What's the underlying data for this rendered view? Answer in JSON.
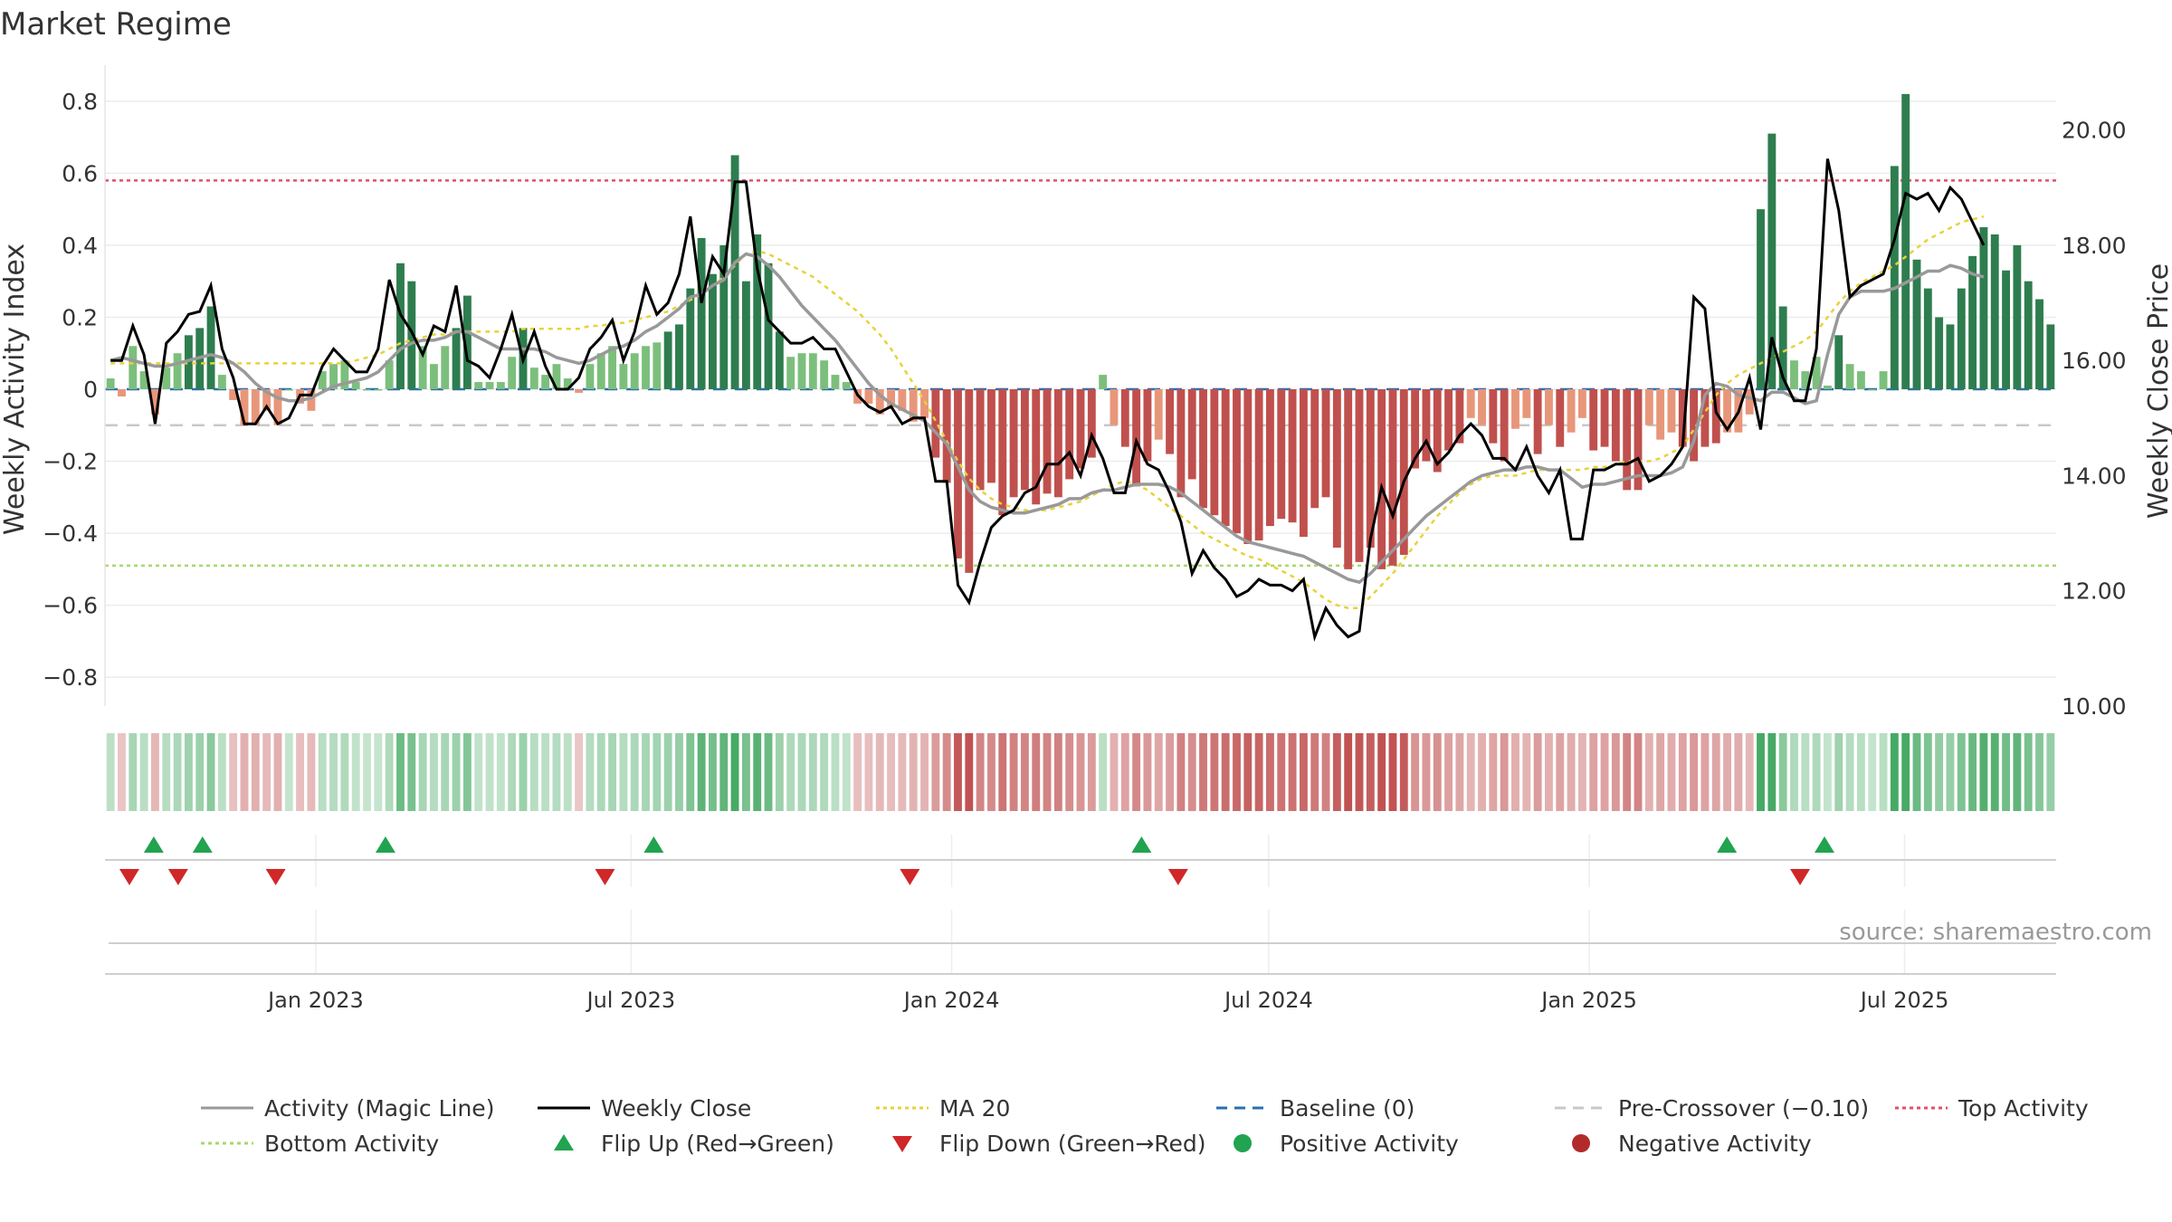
{
  "title": "Market Regime",
  "source": "source: sharemaestro.com",
  "colors": {
    "pos_dark": "#2e7d4f",
    "pos_light": "#7cbf7c",
    "neg_dark": "#c0504d",
    "neg_light": "#e8967a",
    "close": "#000000",
    "magic": "#999999",
    "ma20": "#e8d23a",
    "baseline": "#2a6fb0",
    "precross": "#c8c8c8",
    "top": "#e0506a",
    "bottom": "#a8d86a",
    "flip_up": "#21a350",
    "flip_down": "#d02727"
  },
  "chart_data": {
    "type": "bar+line",
    "ylabel_left": "Weekly Activity Index",
    "ylabel_right": "Weekly Close Price",
    "ylim_left": [
      -0.88,
      0.88
    ],
    "ylim_right": [
      10.0,
      21.0
    ],
    "yticks_left": [
      "0.8",
      "0.6",
      "0.4",
      "0.2",
      "0",
      "−0.2",
      "−0.4",
      "−0.6",
      "−0.8"
    ],
    "yticks_left_values": [
      0.8,
      0.6,
      0.4,
      0.2,
      0,
      -0.2,
      -0.4,
      -0.6,
      -0.8
    ],
    "yticks_right": [
      "20.00",
      "18.00",
      "16.00",
      "14.00",
      "12.00",
      "10.00"
    ],
    "yticks_right_values": [
      20,
      18,
      16,
      14,
      12,
      10
    ],
    "x_start": "2022-09-02",
    "x_end": "2025-09-26",
    "xticks": [
      {
        "label": "Jan 2023",
        "date": "2023-01-01"
      },
      {
        "label": "Jul 2023",
        "date": "2023-07-01"
      },
      {
        "label": "Jan 2024",
        "date": "2024-01-01"
      },
      {
        "label": "Jul 2024",
        "date": "2024-07-01"
      },
      {
        "label": "Jan 2025",
        "date": "2025-01-01"
      },
      {
        "label": "Jul 2025",
        "date": "2025-07-01"
      }
    ],
    "top_activity": 0.58,
    "bottom_activity": -0.49,
    "pre_crossover": -0.1,
    "baseline": 0,
    "activity": [
      [
        0.03,
        -0.02,
        0.12,
        0.05,
        -0.07,
        0.06,
        0.1,
        0.15,
        0.17,
        0.23,
        0.04,
        -0.03,
        -0.1,
        -0.1,
        -0.06,
        -0.1,
        0.0,
        -0.04,
        -0.06,
        0.05,
        0.07,
        0.08,
        0.02,
        0.0,
        0.0,
        0.08,
        0.35,
        0.3,
        0.12,
        0.07,
        0.12,
        0.17,
        0.26,
        0.02,
        0.02,
        0.02,
        0.09,
        0.17,
        0.06,
        0.04,
        0.07,
        0.03,
        -0.01,
        0.07,
        0.1,
        0.12,
        0.07,
        0.1,
        0.12,
        0.13,
        0.16,
        0.18,
        0.28,
        0.42,
        0.32,
        0.4,
        0.65,
        0.3,
        0.43,
        0.35,
        0.16,
        0.09,
        0.1,
        0.1,
        0.08,
        0.04,
        0.02,
        -0.04,
        -0.04,
        -0.07,
        -0.05,
        -0.06,
        -0.09,
        -0.08,
        -0.19,
        -0.26,
        -0.47,
        -0.51,
        -0.28,
        -0.26,
        -0.35,
        -0.3,
        -0.28,
        -0.32,
        -0.29,
        -0.3,
        -0.25,
        -0.22,
        -0.19,
        0.04,
        -0.1,
        -0.16,
        -0.27,
        -0.2,
        -0.14,
        -0.18,
        -0.3,
        -0.25,
        -0.33,
        -0.35,
        -0.38,
        -0.4,
        -0.43,
        -0.42,
        -0.38,
        -0.36,
        -0.37,
        -0.41,
        -0.33,
        -0.3,
        -0.44,
        -0.5,
        -0.48,
        -0.44,
        -0.5,
        -0.49,
        -0.46,
        -0.22,
        -0.2,
        -0.23,
        -0.17,
        -0.15,
        -0.08,
        -0.1,
        -0.15,
        -0.2,
        -0.11,
        -0.08,
        -0.18,
        -0.1,
        -0.16,
        -0.12,
        -0.08,
        -0.17,
        -0.16,
        -0.2,
        -0.28,
        -0.28,
        -0.1,
        -0.14,
        -0.12,
        -0.16,
        -0.2,
        -0.16,
        -0.15,
        -0.12,
        -0.12,
        -0.07,
        0.5,
        0.71,
        0.23,
        0.08,
        0.05,
        0.09,
        0.01,
        0.15,
        0.07,
        0.05,
        0.0,
        0.05,
        0.62,
        0.82,
        0.36,
        0.28,
        0.2,
        0.18,
        0.28,
        0.37,
        0.45,
        0.43,
        0.33,
        0.4,
        0.3,
        0.25,
        0.18
      ]
    ],
    "weekly_close": [
      16.0,
      16.0,
      16.6,
      16.1,
      14.9,
      16.3,
      16.5,
      16.8,
      16.85,
      17.3,
      16.2,
      15.7,
      14.9,
      14.9,
      15.2,
      14.9,
      15.0,
      15.4,
      15.4,
      15.9,
      16.2,
      16.0,
      15.8,
      15.8,
      16.2,
      17.4,
      16.8,
      16.5,
      16.1,
      16.6,
      16.5,
      17.3,
      16.0,
      15.9,
      15.7,
      16.2,
      16.8,
      16.0,
      16.5,
      15.9,
      15.5,
      15.5,
      15.7,
      16.2,
      16.4,
      16.7,
      16.0,
      16.5,
      17.3,
      16.8,
      17.0,
      17.5,
      18.5,
      17.0,
      17.8,
      17.5,
      19.1,
      19.1,
      17.6,
      16.7,
      16.5,
      16.3,
      16.3,
      16.4,
      16.2,
      16.2,
      15.8,
      15.4,
      15.2,
      15.1,
      15.2,
      14.9,
      15.0,
      15.0,
      13.9,
      13.9,
      12.1,
      11.8,
      12.5,
      13.1,
      13.3,
      13.4,
      13.7,
      13.8,
      14.2,
      14.2,
      14.4,
      14.0,
      14.7,
      14.3,
      13.7,
      13.7,
      14.6,
      14.2,
      14.1,
      13.7,
      13.2,
      12.3,
      12.7,
      12.4,
      12.2,
      11.9,
      12.0,
      12.2,
      12.1,
      12.1,
      12.0,
      12.2,
      11.2,
      11.7,
      11.4,
      11.2,
      11.3,
      12.9,
      13.8,
      13.3,
      13.9,
      14.3,
      14.6,
      14.2,
      14.4,
      14.7,
      14.9,
      14.7,
      14.3,
      14.3,
      14.1,
      14.5,
      14.0,
      13.7,
      14.1,
      12.9,
      12.9,
      14.1,
      14.1,
      14.2,
      14.2,
      14.3,
      13.9,
      14.0,
      14.2,
      14.5,
      17.1,
      16.9,
      15.1,
      14.8,
      15.1,
      15.7,
      14.8,
      16.4,
      15.7,
      15.3,
      15.3,
      16.2,
      19.5,
      18.6,
      17.1,
      17.3,
      17.4,
      17.5,
      18.1,
      18.9,
      18.8,
      18.9,
      18.6,
      19.0,
      18.8,
      18.4,
      18.0
    ],
    "magic_line": [
      16.0,
      16.05,
      16.0,
      15.95,
      15.9,
      15.9,
      15.95,
      16.0,
      16.05,
      16.1,
      16.05,
      15.95,
      15.8,
      15.6,
      15.45,
      15.35,
      15.3,
      15.3,
      15.35,
      15.45,
      15.55,
      15.6,
      15.65,
      15.7,
      15.8,
      16.0,
      16.2,
      16.3,
      16.35,
      16.35,
      16.4,
      16.5,
      16.5,
      16.4,
      16.3,
      16.2,
      16.2,
      16.2,
      16.2,
      16.15,
      16.05,
      16.0,
      15.95,
      16.0,
      16.1,
      16.2,
      16.25,
      16.35,
      16.5,
      16.6,
      16.75,
      16.9,
      17.1,
      17.15,
      17.3,
      17.4,
      17.7,
      17.85,
      17.8,
      17.65,
      17.45,
      17.2,
      16.95,
      16.75,
      16.55,
      16.35,
      16.1,
      15.85,
      15.6,
      15.4,
      15.25,
      15.15,
      15.05,
      14.95,
      14.75,
      14.55,
      14.15,
      13.75,
      13.55,
      13.45,
      13.4,
      13.35,
      13.35,
      13.4,
      13.45,
      13.5,
      13.6,
      13.6,
      13.7,
      13.75,
      13.75,
      13.8,
      13.85,
      13.85,
      13.85,
      13.8,
      13.7,
      13.55,
      13.4,
      13.25,
      13.1,
      12.95,
      12.85,
      12.8,
      12.75,
      12.7,
      12.65,
      12.6,
      12.5,
      12.4,
      12.3,
      12.2,
      12.15,
      12.3,
      12.5,
      12.7,
      12.9,
      13.1,
      13.3,
      13.45,
      13.6,
      13.75,
      13.9,
      14.0,
      14.05,
      14.1,
      14.1,
      14.15,
      14.15,
      14.1,
      14.1,
      13.95,
      13.8,
      13.85,
      13.85,
      13.9,
      13.95,
      14.0,
      14.0,
      14.0,
      14.05,
      14.15,
      14.6,
      15.4,
      15.6,
      15.55,
      15.4,
      15.35,
      15.3,
      15.45,
      15.45,
      15.35,
      15.25,
      15.3,
      16.1,
      16.8,
      17.1,
      17.2,
      17.2,
      17.2,
      17.25,
      17.35,
      17.45,
      17.55,
      17.55,
      17.65,
      17.6,
      17.5,
      17.45
    ],
    "ma20": [
      15.95,
      15.95,
      15.95,
      15.95,
      15.95,
      15.95,
      15.95,
      15.95,
      15.95,
      15.95,
      15.95,
      15.95,
      15.95,
      15.95,
      15.95,
      15.95,
      15.95,
      15.95,
      15.95,
      15.95,
      15.95,
      15.95,
      16.0,
      16.05,
      16.1,
      16.2,
      16.3,
      16.35,
      16.4,
      16.45,
      16.45,
      16.5,
      16.5,
      16.5,
      16.5,
      16.5,
      16.5,
      16.55,
      16.55,
      16.55,
      16.55,
      16.55,
      16.55,
      16.6,
      16.6,
      16.65,
      16.65,
      16.7,
      16.75,
      16.8,
      16.85,
      16.95,
      17.05,
      17.15,
      17.3,
      17.45,
      17.65,
      17.85,
      17.9,
      17.85,
      17.75,
      17.65,
      17.55,
      17.45,
      17.3,
      17.15,
      17.0,
      16.85,
      16.65,
      16.45,
      16.2,
      15.9,
      15.6,
      15.3,
      14.95,
      14.6,
      14.25,
      13.95,
      13.75,
      13.6,
      13.5,
      13.45,
      13.4,
      13.4,
      13.4,
      13.45,
      13.5,
      13.55,
      13.65,
      13.75,
      13.85,
      13.9,
      13.85,
      13.75,
      13.6,
      13.45,
      13.3,
      13.15,
      13.0,
      12.9,
      12.8,
      12.7,
      12.6,
      12.55,
      12.45,
      12.35,
      12.25,
      12.15,
      12.0,
      11.85,
      11.75,
      11.7,
      11.7,
      11.9,
      12.1,
      12.3,
      12.55,
      12.8,
      13.05,
      13.3,
      13.5,
      13.7,
      13.85,
      13.95,
      14.0,
      14.0,
      14.0,
      14.05,
      14.1,
      14.1,
      14.1,
      14.1,
      14.1,
      14.15,
      14.15,
      14.2,
      14.25,
      14.25,
      14.25,
      14.3,
      14.4,
      14.5,
      14.8,
      15.1,
      15.4,
      15.6,
      15.75,
      15.85,
      15.95,
      16.05,
      16.15,
      16.25,
      16.35,
      16.5,
      16.75,
      17.0,
      17.2,
      17.35,
      17.45,
      17.55,
      17.65,
      17.8,
      17.95,
      18.1,
      18.2,
      18.3,
      18.4,
      18.45,
      18.5
    ],
    "flip_up_dates": [
      "2022-09-30",
      "2022-10-28",
      "2023-02-10",
      "2023-07-14",
      "2024-04-19",
      "2025-03-21",
      "2025-05-16"
    ],
    "flip_down_dates": [
      "2022-09-16",
      "2022-10-14",
      "2022-12-09",
      "2023-06-16",
      "2023-12-08",
      "2024-05-10",
      "2025-05-02"
    ]
  },
  "legend": [
    {
      "label": "Activity (Magic Line)",
      "kind": "line",
      "color": "#999999",
      "dash": ""
    },
    {
      "label": "Weekly Close",
      "kind": "line",
      "color": "#000000",
      "dash": ""
    },
    {
      "label": "MA 20",
      "kind": "line",
      "color": "#e8d23a",
      "dash": "4 4"
    },
    {
      "label": "Baseline (0)",
      "kind": "line",
      "color": "#2a6fb0",
      "dash": "12 8"
    },
    {
      "label": "Pre-Crossover (−0.10)",
      "kind": "line",
      "color": "#c8c8c8",
      "dash": "12 8"
    },
    {
      "label": "Top Activity",
      "kind": "line",
      "color": "#e0506a",
      "dash": "4 4"
    },
    {
      "label": "Bottom Activity",
      "kind": "line",
      "color": "#a8d86a",
      "dash": "4 4"
    },
    {
      "label": "Flip Up (Red→Green)",
      "kind": "tri-up",
      "color": "#21a350",
      "dash": ""
    },
    {
      "label": "Flip Down (Green→Red)",
      "kind": "tri-down",
      "color": "#d02727",
      "dash": ""
    },
    {
      "label": "Positive Activity",
      "kind": "dot",
      "color": "#21a350",
      "dash": ""
    },
    {
      "label": "Negative Activity",
      "kind": "dot",
      "color": "#b22a2a",
      "dash": ""
    }
  ]
}
